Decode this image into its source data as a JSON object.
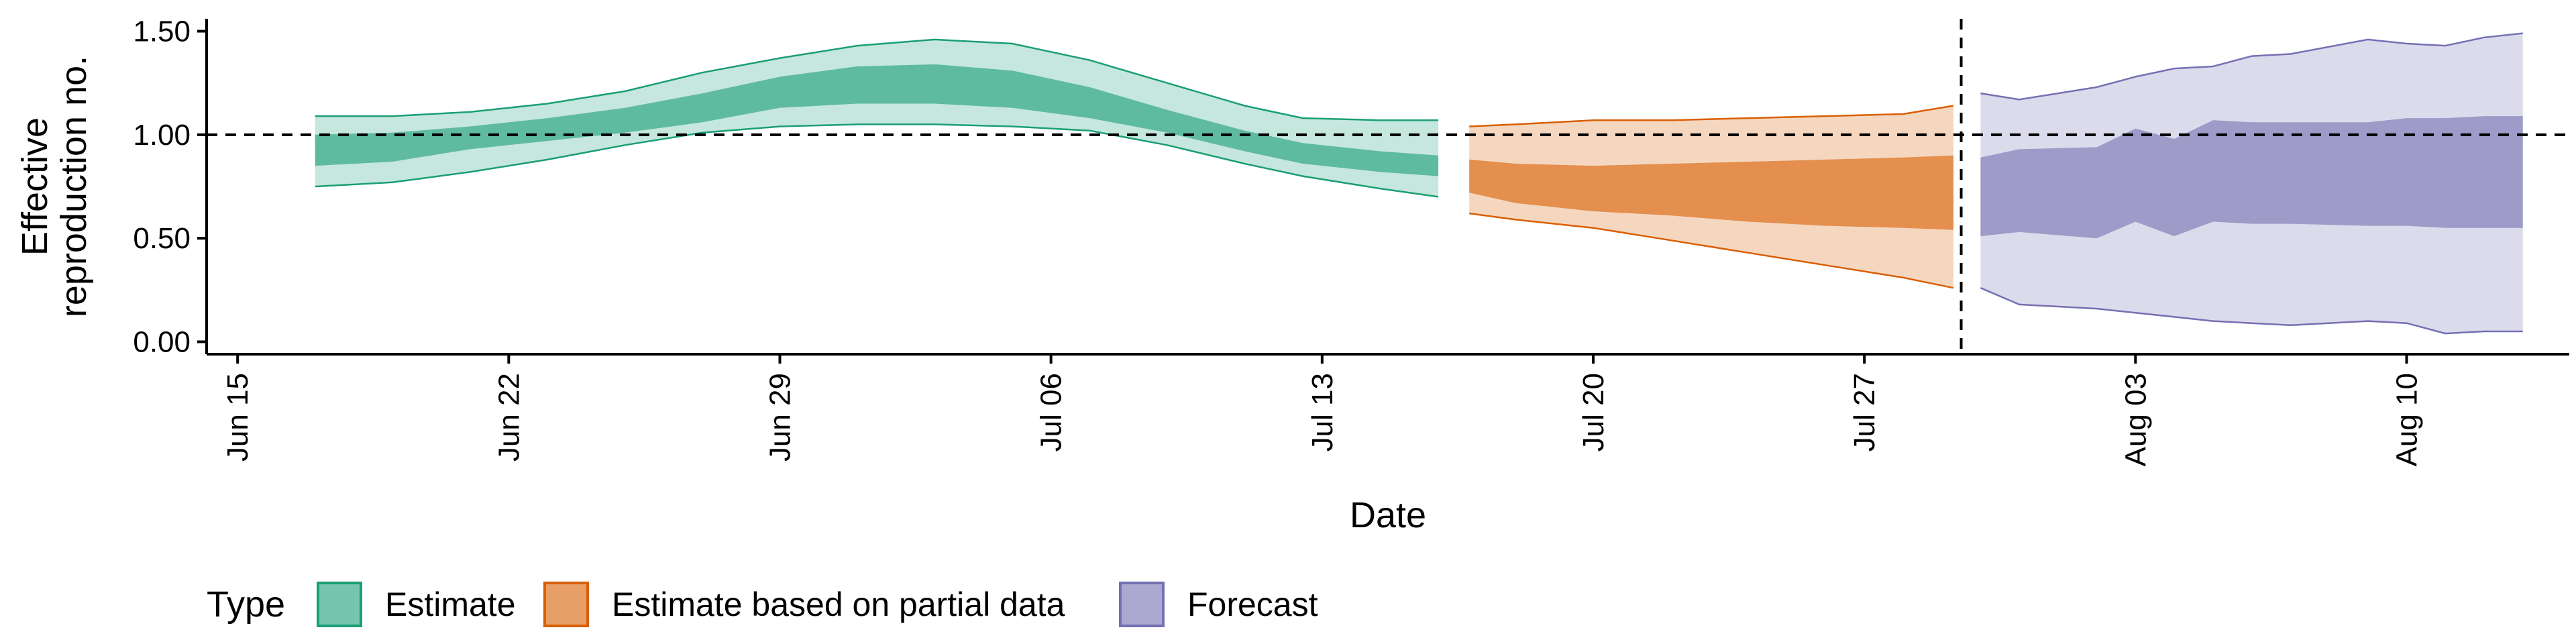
{
  "chart_data": {
    "type": "area",
    "xlabel": "Date",
    "ylabel_lines": [
      "Effective",
      "reproduction no."
    ],
    "x_ticks": [
      "Jun 15",
      "Jun 22",
      "Jun 29",
      "Jul 06",
      "Jul 13",
      "Jul 20",
      "Jul 27",
      "Aug 03",
      "Aug 10"
    ],
    "x_tick_days": [
      0,
      7,
      14,
      21,
      28,
      35,
      42,
      49,
      56
    ],
    "x_domain_days": [
      -0.8,
      60.2
    ],
    "x_start_date": "Jun 15",
    "y_ticks": [
      "0.00",
      "0.50",
      "1.00",
      "1.50"
    ],
    "y_tick_values": [
      0,
      0.5,
      1,
      1.5
    ],
    "ylim": [
      -0.06,
      1.56
    ],
    "reference_hline": 1.0,
    "reference_vline_day": 44.5,
    "grid": false,
    "legend": {
      "title": "Type",
      "position": "bottom",
      "entries": [
        {
          "label": "Estimate",
          "fill": "#1b9e77"
        },
        {
          "label": "Estimate based on partial data",
          "fill": "#d95f02"
        },
        {
          "label": "Forecast",
          "fill": "#7570b3"
        }
      ]
    },
    "series": [
      {
        "name": "Estimate",
        "fill": "#1b9e77",
        "x_days": [
          2,
          4,
          6,
          8,
          10,
          12,
          14,
          16,
          18,
          20,
          22,
          24,
          26,
          27.5,
          29.5,
          31
        ],
        "upper90": [
          1.09,
          1.09,
          1.11,
          1.15,
          1.21,
          1.3,
          1.37,
          1.43,
          1.46,
          1.44,
          1.36,
          1.25,
          1.14,
          1.08,
          1.07,
          1.07
        ],
        "upper50": [
          1.0,
          1.01,
          1.04,
          1.08,
          1.13,
          1.2,
          1.28,
          1.33,
          1.34,
          1.31,
          1.23,
          1.12,
          1.02,
          0.96,
          0.92,
          0.9
        ],
        "lower50": [
          0.85,
          0.87,
          0.93,
          0.97,
          1.01,
          1.06,
          1.13,
          1.15,
          1.15,
          1.13,
          1.08,
          1.01,
          0.92,
          0.86,
          0.82,
          0.8
        ],
        "lower90": [
          0.75,
          0.77,
          0.82,
          0.88,
          0.95,
          1.01,
          1.04,
          1.05,
          1.05,
          1.04,
          1.02,
          0.95,
          0.86,
          0.8,
          0.74,
          0.7
        ]
      },
      {
        "name": "Estimate based on partial data",
        "fill": "#d95f02",
        "x_days": [
          31.8,
          33,
          35,
          37,
          39,
          41,
          43,
          44.3
        ],
        "upper90": [
          1.04,
          1.05,
          1.07,
          1.07,
          1.08,
          1.09,
          1.1,
          1.14
        ],
        "upper50": [
          0.88,
          0.86,
          0.85,
          0.86,
          0.87,
          0.88,
          0.89,
          0.9
        ],
        "lower50": [
          0.72,
          0.67,
          0.63,
          0.61,
          0.58,
          0.56,
          0.55,
          0.54
        ],
        "lower90": [
          0.62,
          0.59,
          0.55,
          0.49,
          0.43,
          0.37,
          0.31,
          0.26
        ]
      },
      {
        "name": "Forecast",
        "fill": "#7570b3",
        "x_days": [
          45,
          46,
          48,
          49,
          50,
          51,
          52,
          53,
          55,
          56,
          57,
          58,
          59
        ],
        "upper90": [
          1.2,
          1.17,
          1.23,
          1.28,
          1.32,
          1.33,
          1.38,
          1.39,
          1.46,
          1.44,
          1.43,
          1.47,
          1.49
        ],
        "upper50": [
          0.89,
          0.93,
          0.94,
          1.03,
          0.98,
          1.07,
          1.06,
          1.06,
          1.06,
          1.08,
          1.08,
          1.09,
          1.09
        ],
        "lower50": [
          0.51,
          0.53,
          0.5,
          0.58,
          0.51,
          0.58,
          0.57,
          0.57,
          0.56,
          0.56,
          0.55,
          0.55,
          0.55
        ],
        "lower90": [
          0.26,
          0.18,
          0.16,
          0.14,
          0.12,
          0.1,
          0.09,
          0.08,
          0.1,
          0.09,
          0.04,
          0.05,
          0.05
        ]
      }
    ]
  }
}
